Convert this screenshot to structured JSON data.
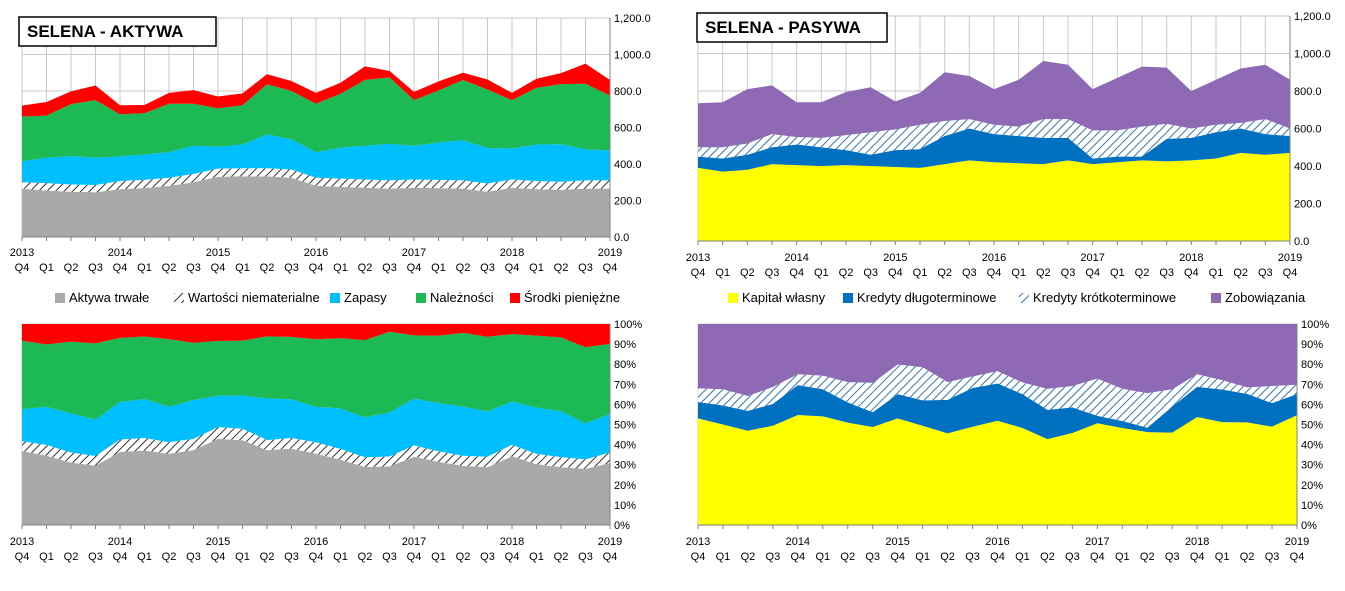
{
  "colors": {
    "aktywa_trwale": "#A9A9A9",
    "wartosci_niematerialne": "#FFFFFF",
    "zapasy": "#00BFFF",
    "naleznosci": "#1DB954",
    "srodki_pieniezne": "#FF0000",
    "kapital_wlasny": "#FFFF00",
    "kredyty_dlugoterminowe": "#0070C0",
    "kredyty_krotkoterminowe": "#FFFFFF",
    "zobowiazania": "#8E6AB4",
    "hatch": "#333333",
    "hatch_blue": "#2E75B6"
  },
  "x_axis": {
    "years": [
      "2013",
      "2014",
      "2015",
      "2016",
      "2017",
      "2018",
      "2019"
    ],
    "quarters": [
      "Q4",
      "Q1",
      "Q2",
      "Q3",
      "Q4",
      "Q1",
      "Q2",
      "Q3",
      "Q4",
      "Q1",
      "Q2",
      "Q3",
      "Q4",
      "Q1",
      "Q2",
      "Q3",
      "Q4",
      "Q1",
      "Q2",
      "Q3",
      "Q4",
      "Q1",
      "Q2",
      "Q3",
      "Q4"
    ]
  },
  "legend_aktywa": [
    "Aktywa trwałe",
    "Wartości niematerialne",
    "Zapasy",
    "Należności",
    "Środki pieniężne"
  ],
  "legend_pasywa": [
    "Kapitał własny",
    "Kredyty długoterminowe",
    "Kredyty krótkoterminowe",
    "Zobowiązania"
  ],
  "chart_data": [
    {
      "type": "area",
      "title": "SELENA - AKTYWA",
      "stacked": true,
      "ylim": [
        0,
        1200
      ],
      "yticks": [
        "0.0",
        "200.0",
        "400.0",
        "600.0",
        "800.0",
        "1,000.0",
        "1,200.0"
      ],
      "series": [
        {
          "name": "Aktywa trwałe",
          "values": [
            265,
            255,
            248,
            245,
            262,
            268,
            280,
            300,
            330,
            332,
            332,
            325,
            280,
            275,
            270,
            265,
            270,
            268,
            265,
            248,
            270,
            262,
            258,
            265,
            265
          ]
        },
        {
          "name": "Wartości niematerialne",
          "values": [
            35,
            40,
            40,
            40,
            45,
            45,
            45,
            45,
            45,
            45,
            45,
            45,
            45,
            45,
            45,
            45,
            45,
            45,
            45,
            45,
            45,
            45,
            45,
            45,
            45
          ]
        },
        {
          "name": "Zapasy",
          "values": [
            115,
            140,
            155,
            150,
            135,
            140,
            140,
            155,
            120,
            130,
            185,
            165,
            140,
            170,
            185,
            200,
            185,
            205,
            220,
            195,
            170,
            200,
            205,
            170,
            165
          ]
        },
        {
          "name": "Należności",
          "values": [
            245,
            230,
            285,
            315,
            230,
            225,
            265,
            230,
            210,
            215,
            275,
            265,
            265,
            295,
            360,
            365,
            250,
            285,
            330,
            320,
            265,
            310,
            330,
            360,
            300
          ]
        },
        {
          "name": "Środki pieniężne",
          "values": [
            60,
            75,
            70,
            80,
            50,
            45,
            60,
            75,
            65,
            65,
            55,
            55,
            60,
            60,
            75,
            35,
            45,
            50,
            40,
            55,
            40,
            50,
            60,
            110,
            85
          ]
        }
      ]
    },
    {
      "type": "area",
      "title": "SELENA - PASYWA",
      "stacked": true,
      "ylim": [
        0,
        1200
      ],
      "yticks": [
        "0.0",
        "200.0",
        "400.0",
        "600.0",
        "800.0",
        "1,000.0",
        "1,200.0"
      ],
      "series": [
        {
          "name": "Kapitał własny",
          "values": [
            390,
            370,
            380,
            410,
            405,
            400,
            405,
            400,
            395,
            390,
            410,
            430,
            420,
            415,
            410,
            430,
            410,
            420,
            430,
            425,
            430,
            440,
            470,
            460,
            470
          ]
        },
        {
          "name": "Kredyty długoterminowe",
          "values": [
            60,
            70,
            80,
            90,
            110,
            100,
            80,
            60,
            90,
            100,
            150,
            170,
            150,
            145,
            140,
            120,
            30,
            30,
            20,
            120,
            120,
            140,
            130,
            110,
            90
          ]
        },
        {
          "name": "Kredyty krótkoterminowe",
          "values": [
            50,
            60,
            60,
            70,
            40,
            50,
            80,
            120,
            110,
            130,
            80,
            50,
            50,
            50,
            100,
            100,
            150,
            140,
            160,
            80,
            50,
            40,
            30,
            80,
            40
          ]
        },
        {
          "name": "Zobowiązania",
          "values": [
            235,
            240,
            290,
            260,
            185,
            190,
            230,
            240,
            150,
            170,
            260,
            230,
            190,
            250,
            310,
            290,
            220,
            280,
            320,
            300,
            200,
            240,
            290,
            290,
            260
          ]
        }
      ]
    },
    {
      "type": "area",
      "stacked": true,
      "normalized": true,
      "ylim": [
        0,
        100
      ],
      "yticks": [
        "0%",
        "10%",
        "20%",
        "30%",
        "40%",
        "50%",
        "60%",
        "70%",
        "80%",
        "90%",
        "100%"
      ],
      "series_ref": "SELENA - AKTYWA"
    },
    {
      "type": "area",
      "stacked": true,
      "normalized": true,
      "ylim": [
        0,
        100
      ],
      "yticks": [
        "0%",
        "10%",
        "20%",
        "30%",
        "40%",
        "50%",
        "60%",
        "70%",
        "80%",
        "90%",
        "100%"
      ],
      "series_ref": "SELENA - PASYWA"
    }
  ]
}
